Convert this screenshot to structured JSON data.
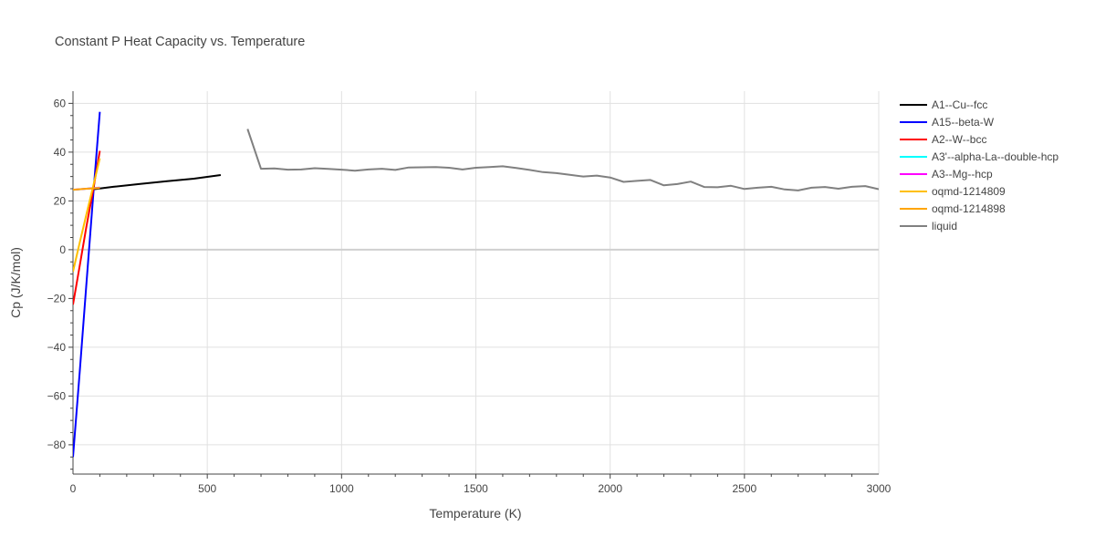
{
  "chart_data": {
    "type": "line",
    "title": "Constant P Heat Capacity vs. Temperature",
    "xlabel": "Temperature (K)",
    "ylabel": "Cp (J/K/mol)",
    "xlim": [
      0,
      3000
    ],
    "ylim": [
      -92,
      65
    ],
    "xticks": [
      0,
      500,
      1000,
      1500,
      2000,
      2500,
      3000
    ],
    "yticks": [
      -80,
      -60,
      -40,
      -20,
      0,
      20,
      40,
      60
    ],
    "grid": true,
    "legend_position": "right",
    "series": [
      {
        "name": "A1--Cu--fcc",
        "color": "#000000",
        "x": [
          80,
          150,
          250,
          350,
          450,
          550
        ],
        "y": [
          24.8,
          25.8,
          27.0,
          28.1,
          29.1,
          30.6
        ]
      },
      {
        "name": "A15--beta-W",
        "color": "#0000ff",
        "x": [
          0,
          25,
          50,
          75,
          100
        ],
        "y": [
          -85,
          -50,
          -14,
          22,
          56.5
        ]
      },
      {
        "name": "A2--W--bcc",
        "color": "#ff0000",
        "x": [
          0,
          25,
          50,
          75,
          100
        ],
        "y": [
          -22.5,
          -6.5,
          9.5,
          24.5,
          40.5
        ]
      },
      {
        "name": "A3'--alpha-La--double-hcp",
        "color": "#00ffff",
        "x": [
          0,
          50,
          100
        ],
        "y": [
          24.5,
          25.0,
          25.5
        ]
      },
      {
        "name": "A3--Mg--hcp",
        "color": "#ff00ff",
        "x": [
          0,
          50,
          100
        ],
        "y": [
          24.6,
          25.0,
          25.4
        ]
      },
      {
        "name": "oqmd-1214809",
        "color": "#ffbf00",
        "x": [
          0,
          25,
          50,
          75,
          100
        ],
        "y": [
          -9,
          3,
          14.5,
          26,
          37.5
        ]
      },
      {
        "name": "oqmd-1214898",
        "color": "#ffa500",
        "x": [
          0,
          50,
          100
        ],
        "y": [
          24.6,
          25.0,
          25.3
        ]
      },
      {
        "name": "liquid",
        "color": "#808080",
        "x": [
          650,
          700,
          750,
          800,
          850,
          900,
          950,
          1000,
          1050,
          1100,
          1150,
          1200,
          1250,
          1300,
          1350,
          1400,
          1450,
          1500,
          1550,
          1600,
          1650,
          1700,
          1750,
          1800,
          1850,
          1900,
          1950,
          2000,
          2050,
          2100,
          2150,
          2200,
          2250,
          2300,
          2350,
          2400,
          2450,
          2500,
          2550,
          2600,
          2650,
          2700,
          2750,
          2800,
          2850,
          2900,
          2950,
          3000
        ],
        "y": [
          49.5,
          33.2,
          33.3,
          32.8,
          32.9,
          33.4,
          33.1,
          32.8,
          32.4,
          32.9,
          33.2,
          32.7,
          33.7,
          33.8,
          33.9,
          33.6,
          32.9,
          33.6,
          33.9,
          34.2,
          33.5,
          32.7,
          31.8,
          31.4,
          30.7,
          30.0,
          30.4,
          29.6,
          27.8,
          28.2,
          28.6,
          26.4,
          26.9,
          27.9,
          25.7,
          25.6,
          26.2,
          24.9,
          25.4,
          25.8,
          24.7,
          24.3,
          25.4,
          25.7,
          25.0,
          25.8,
          26.1,
          24.8
        ]
      }
    ]
  }
}
